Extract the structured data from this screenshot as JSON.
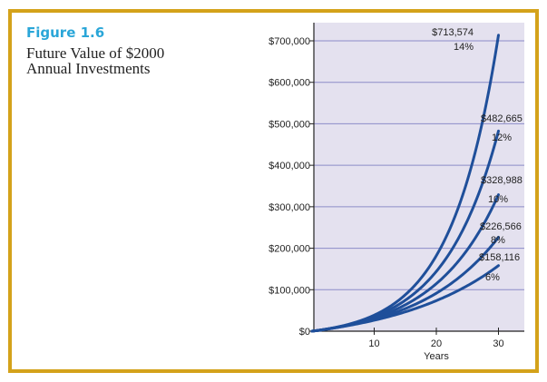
{
  "figure": {
    "label": "Figure 1.6",
    "title_line1": "Future Value of $2000",
    "title_line2": "Annual Investments"
  },
  "colors": {
    "border": "#d4a21a",
    "plot_bg": "#e4e1ef",
    "line": "#1f4f9a",
    "grid": "#8c8cc8",
    "label": "#2aa6d8"
  },
  "chart_data": {
    "type": "line",
    "title": "Future Value of $2000 Annual Investments",
    "xlabel": "Years",
    "ylabel": "",
    "xlim": [
      0,
      33
    ],
    "ylim": [
      0,
      725000
    ],
    "annual_investment": 2000,
    "x_ticks": [
      10,
      20,
      30
    ],
    "x_tick_labels": [
      "10",
      "20",
      "30"
    ],
    "y_ticks": [
      0,
      100000,
      200000,
      300000,
      400000,
      500000,
      600000,
      700000
    ],
    "y_tick_labels": [
      "$0",
      "$100,000",
      "$200,000",
      "$300,000",
      "$400,000",
      "$500,000",
      "$600,000",
      "$700,000"
    ],
    "series": [
      {
        "name": "14%",
        "rate": 0.14,
        "years": 30,
        "final_value": 713574,
        "value_label": "$713,574",
        "rate_label": "14%"
      },
      {
        "name": "12%",
        "rate": 0.12,
        "years": 30,
        "final_value": 482665,
        "value_label": "$482,665",
        "rate_label": "12%"
      },
      {
        "name": "10%",
        "rate": 0.1,
        "years": 30,
        "final_value": 328988,
        "value_label": "$328,988",
        "rate_label": "10%"
      },
      {
        "name": "8%",
        "rate": 0.08,
        "years": 30,
        "final_value": 226566,
        "value_label": "$226,566",
        "rate_label": "8%"
      },
      {
        "name": "6%",
        "rate": 0.06,
        "years": 30,
        "final_value": 158116,
        "value_label": "$158,116",
        "rate_label": "6%"
      }
    ]
  }
}
